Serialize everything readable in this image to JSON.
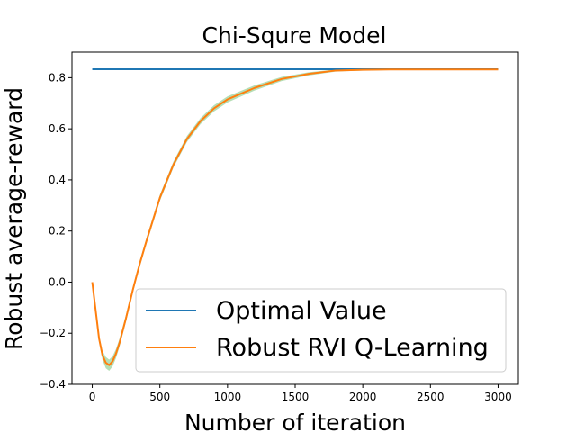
{
  "chart_data": {
    "type": "line",
    "title": "Chi-Squre Model",
    "xlabel": "Number of iteration",
    "ylabel": "Robust average-reward",
    "xlim": [
      -150,
      3150
    ],
    "ylim": [
      -0.4,
      0.9
    ],
    "xticks": [
      0,
      500,
      1000,
      1500,
      2000,
      2500,
      3000
    ],
    "yticks": [
      -0.4,
      -0.2,
      0.0,
      0.2,
      0.4,
      0.6,
      0.8
    ],
    "xtick_labels": [
      "0",
      "500",
      "1000",
      "1500",
      "2000",
      "2500",
      "3000"
    ],
    "ytick_labels": [
      "−0.4",
      "−0.2",
      "0.0",
      "0.2",
      "0.4",
      "0.6",
      "0.8"
    ],
    "legend_position": "lower-right",
    "series": [
      {
        "name": "Optimal Value",
        "color": "#1f77b4",
        "x": [
          0,
          3000
        ],
        "values": [
          0.833,
          0.833
        ]
      },
      {
        "name": "Robust RVI Q-Learning",
        "color": "#ff7f0e",
        "band_color": "#2ca02c",
        "x": [
          0,
          25,
          50,
          75,
          100,
          125,
          150,
          175,
          200,
          250,
          300,
          350,
          400,
          500,
          600,
          700,
          800,
          900,
          1000,
          1200,
          1400,
          1600,
          1800,
          2000,
          2200,
          2500,
          2800,
          3000
        ],
        "values": [
          0.0,
          -0.11,
          -0.22,
          -0.285,
          -0.315,
          -0.325,
          -0.31,
          -0.28,
          -0.24,
          -0.14,
          -0.03,
          0.07,
          0.16,
          0.33,
          0.46,
          0.56,
          0.63,
          0.68,
          0.715,
          0.76,
          0.795,
          0.815,
          0.828,
          0.831,
          0.832,
          0.832,
          0.832,
          0.832
        ],
        "band": [
          0.0,
          0.005,
          0.012,
          0.018,
          0.022,
          0.022,
          0.02,
          0.018,
          0.016,
          0.014,
          0.012,
          0.012,
          0.012,
          0.012,
          0.012,
          0.012,
          0.012,
          0.012,
          0.012,
          0.01,
          0.008,
          0.006,
          0.004,
          0.003,
          0.002,
          0.001,
          0.001,
          0.001
        ]
      }
    ]
  }
}
